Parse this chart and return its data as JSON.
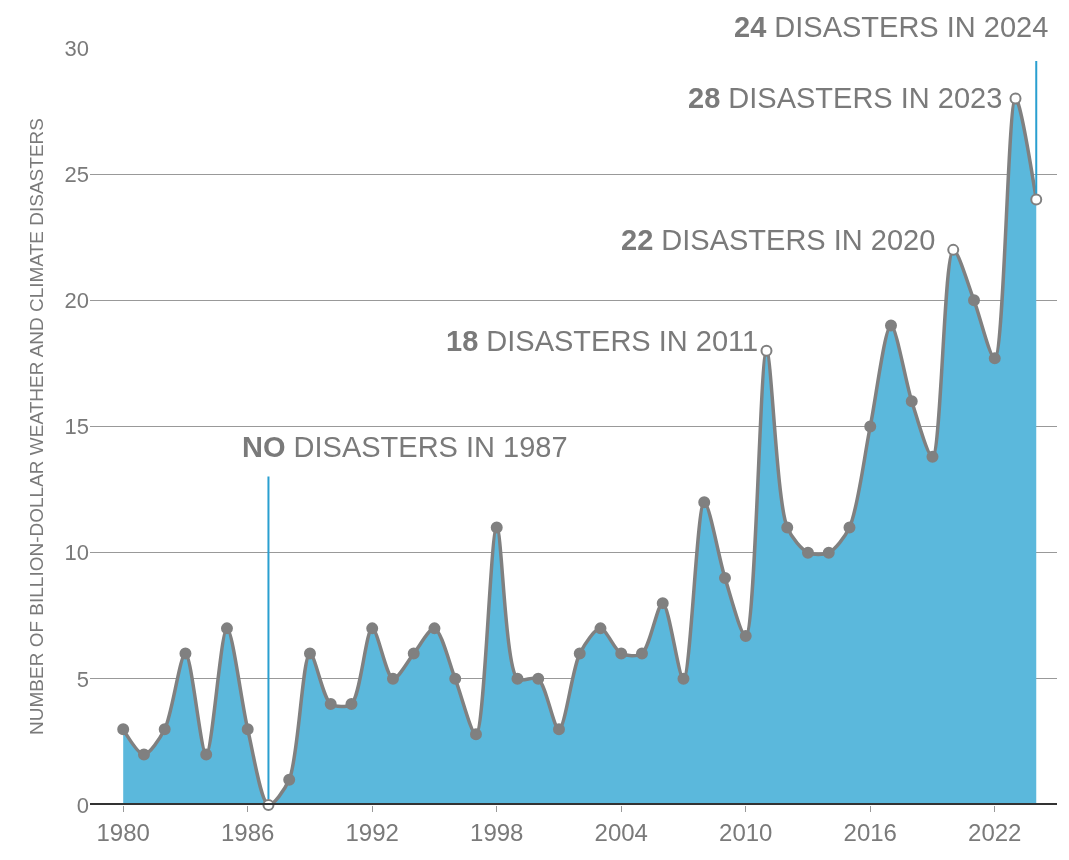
{
  "chart_data": {
    "type": "area",
    "ylabel": "NUMBER OF BILLION-DOLLAR WEATHER AND CLIMATE DISASTERS",
    "x": [
      1980,
      1981,
      1982,
      1983,
      1984,
      1985,
      1986,
      1987,
      1988,
      1989,
      1990,
      1991,
      1992,
      1993,
      1994,
      1995,
      1996,
      1997,
      1998,
      1999,
      2000,
      2001,
      2002,
      2003,
      2004,
      2005,
      2006,
      2007,
      2008,
      2009,
      2010,
      2011,
      2012,
      2013,
      2014,
      2015,
      2016,
      2017,
      2018,
      2019,
      2020,
      2021,
      2022,
      2023,
      2024
    ],
    "series": [
      {
        "color": "#5bb8dc",
        "values": [
          3,
          2,
          3,
          6,
          2,
          7,
          3,
          0,
          1,
          6,
          4,
          4,
          7,
          5,
          6,
          7,
          5,
          2.8,
          11,
          5,
          5,
          3,
          6,
          7,
          6,
          6,
          8,
          5,
          12,
          9,
          6.7,
          18,
          11,
          10,
          10,
          11,
          15,
          19,
          16,
          13.8,
          22,
          20,
          17.7,
          28,
          24
        ]
      }
    ],
    "xlim": [
      1978.4,
      2025
    ],
    "xticks": [
      1980,
      1986,
      1992,
      1998,
      2004,
      2010,
      2016,
      2022
    ],
    "ylim": [
      0,
      30
    ],
    "yticks": [
      0,
      5,
      10,
      15,
      20,
      25,
      30
    ],
    "grid": "y",
    "marker": "circle",
    "annotations": [
      {
        "text": "NO DISASTERS IN 1987",
        "x": 1987,
        "y": 0
      },
      {
        "text": "18 DISASTERS IN 2011",
        "x": 2011,
        "y": 18
      },
      {
        "text": "22 DISASTERS IN 2020",
        "x": 2020,
        "y": 22
      },
      {
        "text": "28 DISASTERS IN 2023",
        "x": 2023,
        "y": 28
      },
      {
        "text": "24 DISASTERS IN 2024",
        "x": 2024,
        "y": 24
      }
    ]
  }
}
